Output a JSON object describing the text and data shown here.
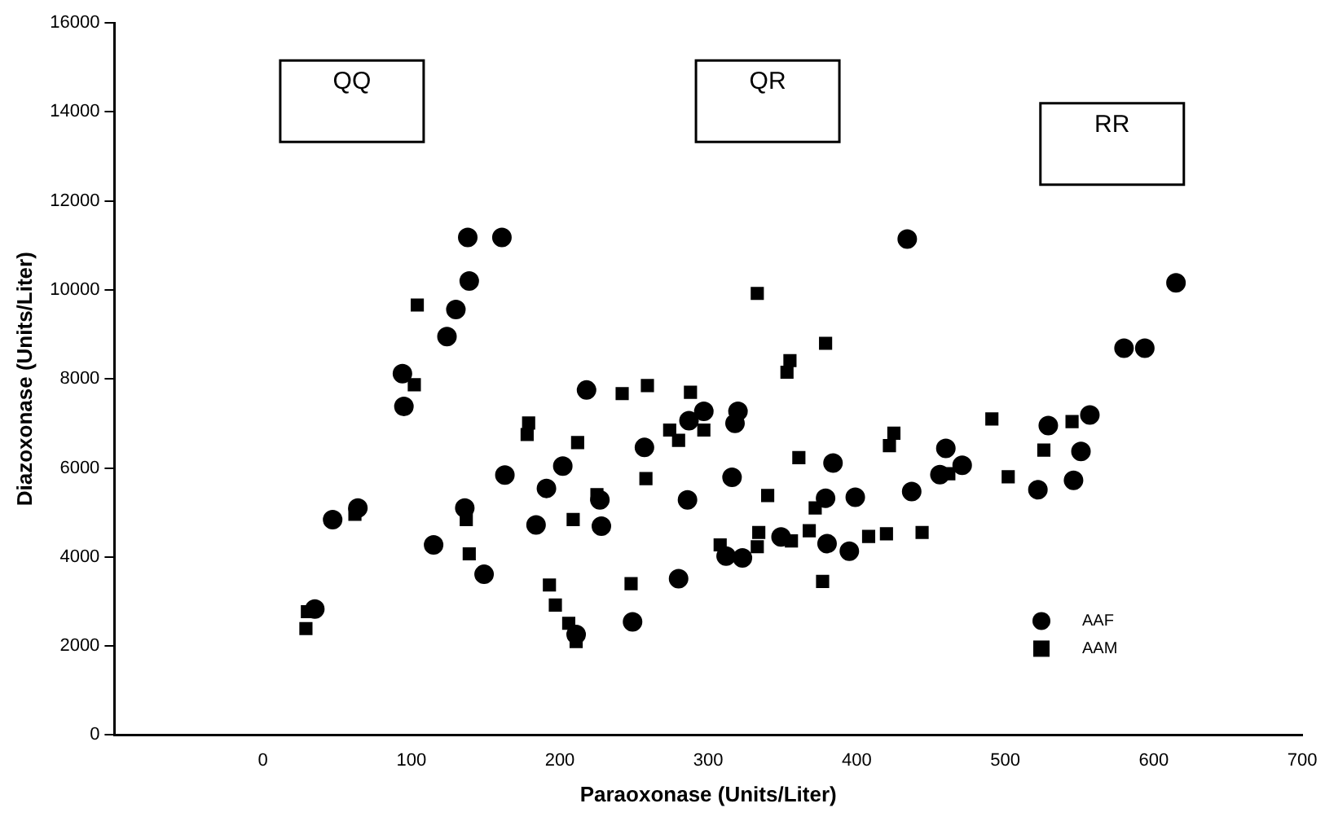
{
  "chart_data": {
    "type": "scatter",
    "xlabel": "Paraoxonase (Units/Liter)",
    "ylabel": "Diazoxonase (Units/Liter)",
    "xlim": [
      -100,
      700
    ],
    "xticks": [
      {
        "value": -100,
        "label": null
      },
      0,
      100,
      200,
      300,
      400,
      500,
      600,
      700
    ],
    "ylim": [
      0,
      16000
    ],
    "yticks": [
      0,
      2000,
      4000,
      6000,
      8000,
      10000,
      12000,
      14000,
      16000
    ],
    "grid": false,
    "legend": "bottom right",
    "annotations": [
      "QQ",
      "QR",
      "RR"
    ],
    "series": [
      {
        "name": "AAF",
        "color": "#000000",
        "marker": "circle",
        "x": [
          138,
          161,
          139,
          130,
          124,
          94,
          95,
          163,
          47,
          64,
          115,
          136,
          149,
          35,
          218,
          297,
          320,
          318,
          287,
          257,
          202,
          191,
          227,
          316,
          286,
          384,
          379,
          399,
          184,
          228,
          312,
          323,
          349,
          380,
          395,
          211,
          280,
          249,
          434,
          615,
          580,
          594,
          529,
          557,
          460,
          471,
          456,
          437,
          522,
          551,
          546
        ],
        "values": [
          11180,
          11180,
          10200,
          9560,
          8950,
          8120,
          7380,
          5840,
          4840,
          5100,
          4270,
          5100,
          3610,
          2830,
          7750,
          7270,
          7270,
          7000,
          7060,
          6460,
          6040,
          5540,
          5280,
          5790,
          5280,
          6110,
          5320,
          5340,
          4720,
          4690,
          4020,
          3980,
          4450,
          4300,
          4130,
          2260,
          3510,
          2540,
          11140,
          10160,
          8690,
          8690,
          6950,
          7190,
          6440,
          6060,
          5850,
          5470,
          5510,
          6370,
          5720
        ]
      },
      {
        "name": "AAM",
        "color": "#000000",
        "marker": "square",
        "x": [
          104,
          102,
          62,
          137,
          139,
          30,
          29,
          333,
          379,
          355,
          353,
          242,
          259,
          288,
          274,
          297,
          179,
          178,
          212,
          280,
          225,
          258,
          361,
          340,
          372,
          422,
          209,
          308,
          334,
          333,
          356,
          368,
          408,
          420,
          193,
          197,
          206,
          211,
          248,
          377,
          491,
          545,
          425,
          462,
          444,
          502,
          526
        ],
        "values": [
          9660,
          7870,
          4960,
          4840,
          4070,
          2770,
          2390,
          9920,
          8800,
          8410,
          8150,
          7670,
          7850,
          7700,
          6850,
          6850,
          7010,
          6750,
          6570,
          6620,
          5400,
          5760,
          6230,
          5380,
          5100,
          6500,
          4840,
          4270,
          4550,
          4230,
          4360,
          4590,
          4460,
          4520,
          3370,
          2920,
          2510,
          2100,
          3400,
          3450,
          7100,
          7040,
          6780,
          5870,
          4550,
          5800,
          6400
        ]
      }
    ]
  }
}
